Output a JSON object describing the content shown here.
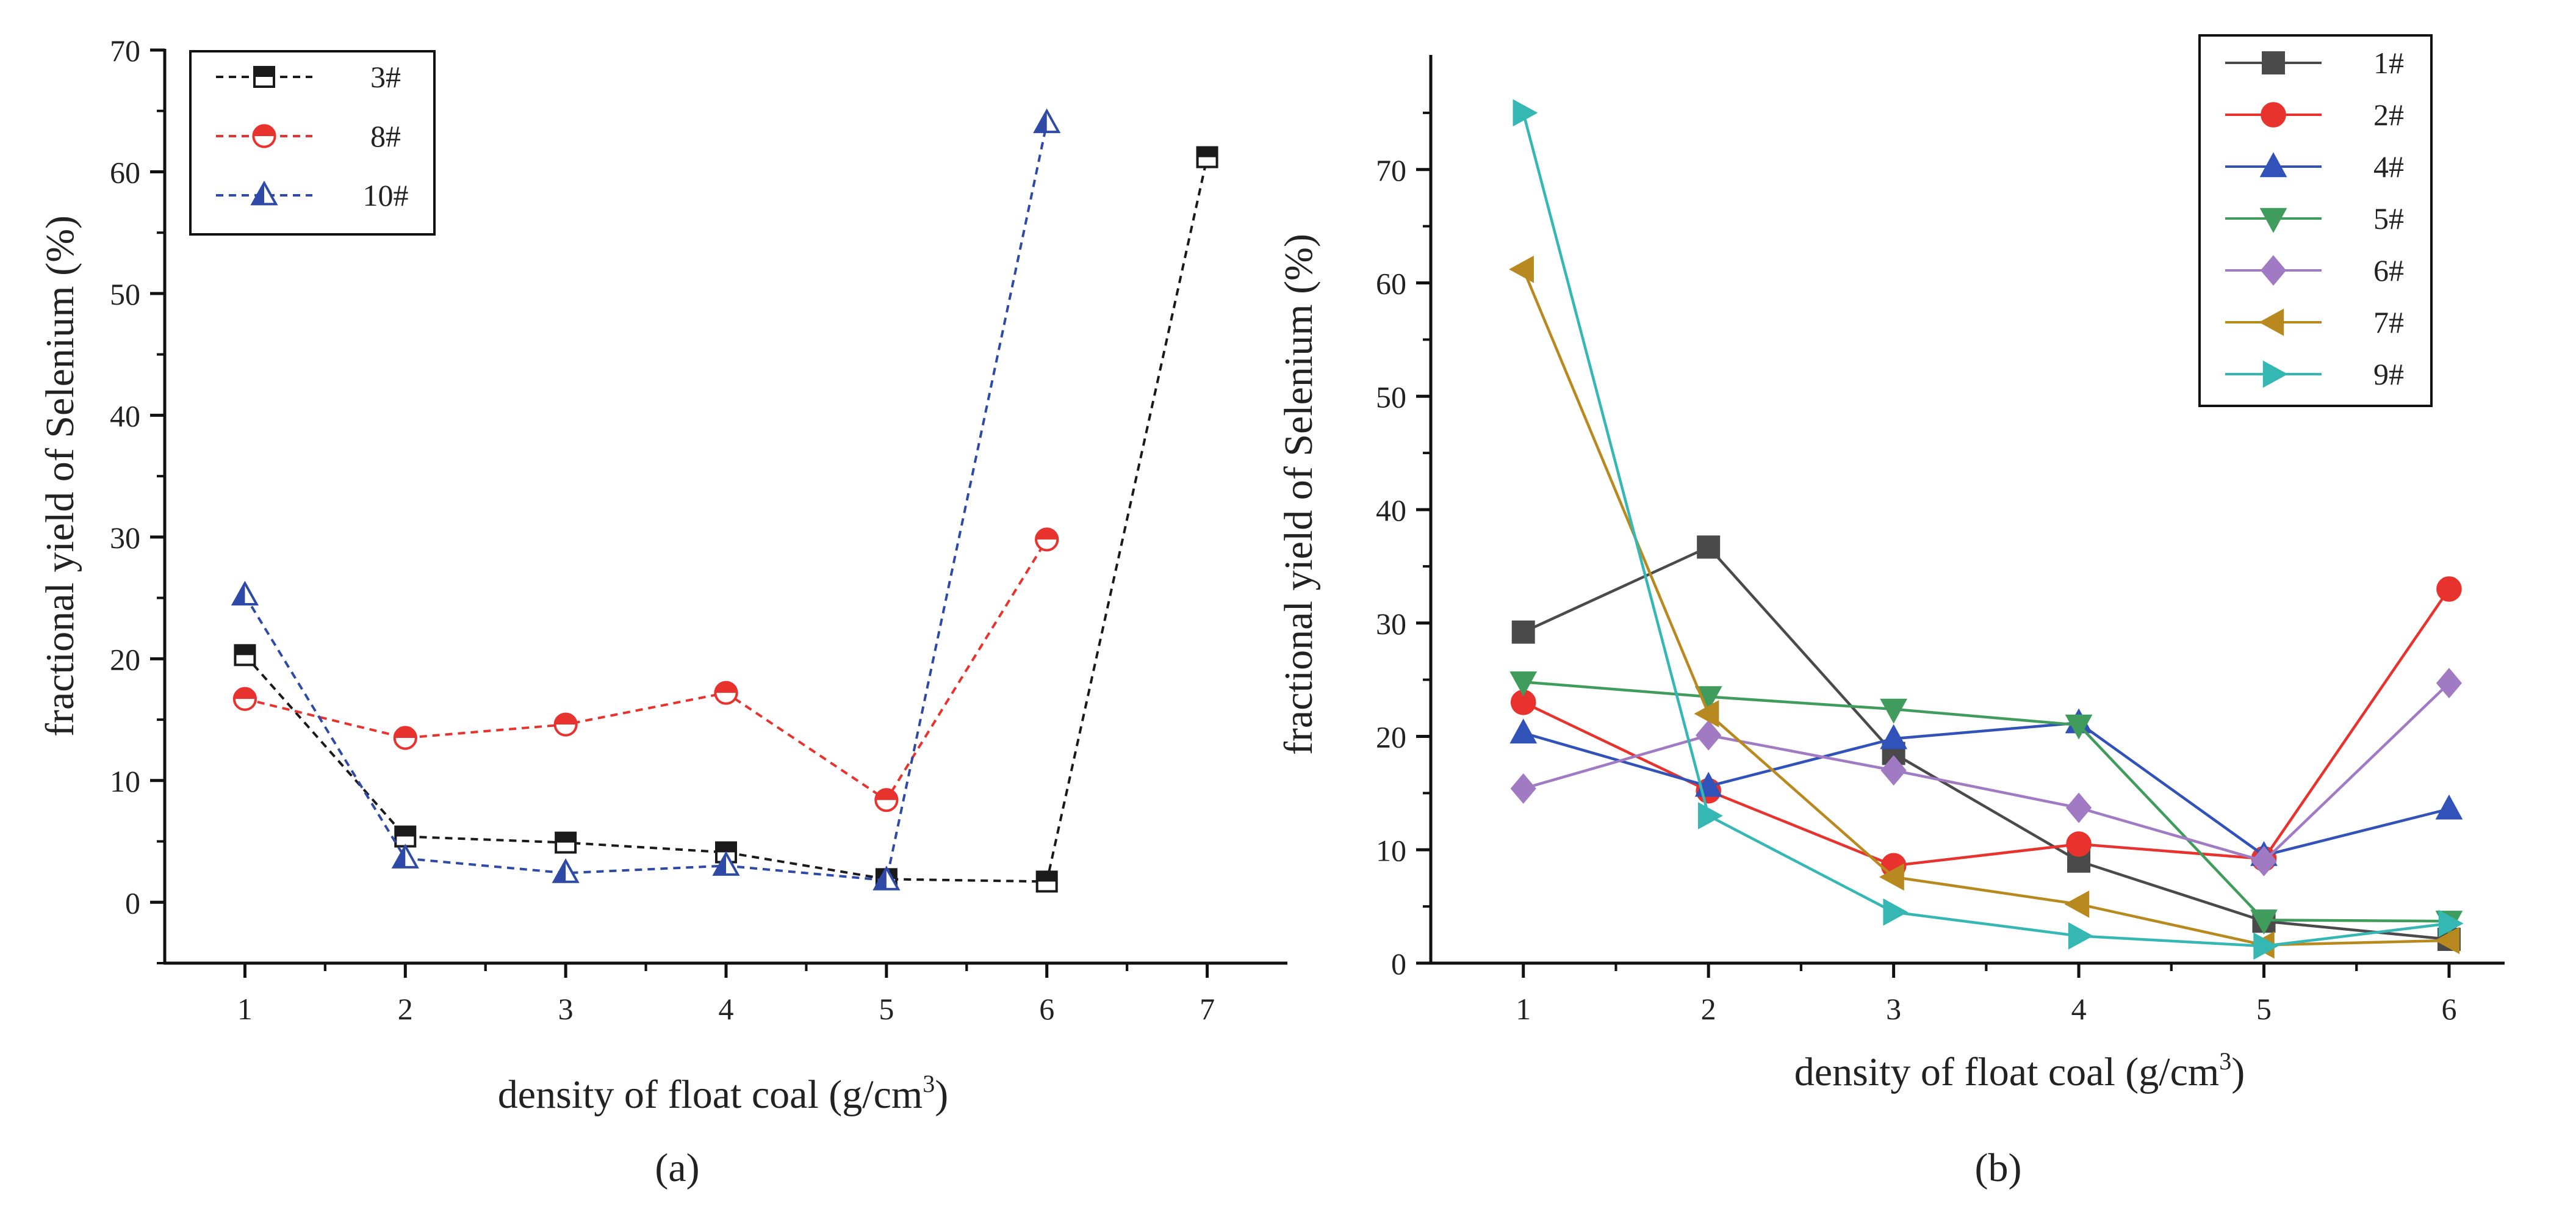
{
  "chart_data": [
    {
      "type": "line",
      "panel_label": "(a)",
      "title": "",
      "xlabel": "density of float coal (g/cm",
      "xlabel_sup": "3",
      "xlabel_end": ")",
      "ylabel": "fractional yield of Selenium (%)",
      "xlim": [
        0.5,
        7.5
      ],
      "ylim": [
        -5,
        70
      ],
      "xticks": [
        "1",
        "2",
        "3",
        "4",
        "5",
        "6",
        "7"
      ],
      "yticks": [
        "0",
        "10",
        "20",
        "30",
        "40",
        "50",
        "60",
        "70"
      ],
      "legend_position": "top-left",
      "series": [
        {
          "name": "3#",
          "color": "#1a1a1a",
          "marker": "half-square",
          "dashed": true,
          "x": [
            1,
            2,
            3,
            4,
            5,
            6,
            7
          ],
          "y": [
            20.3,
            5.4,
            4.9,
            4.1,
            1.9,
            1.7,
            61.2
          ]
        },
        {
          "name": "8#",
          "color": "#e8322d",
          "marker": "half-circle",
          "dashed": true,
          "x": [
            1,
            2,
            3,
            4,
            5,
            6
          ],
          "y": [
            16.7,
            13.5,
            14.6,
            17.2,
            8.4,
            29.8
          ]
        },
        {
          "name": "10#",
          "color": "#2f4aa6",
          "marker": "half-triangle",
          "dashed": true,
          "x": [
            1,
            2,
            3,
            4,
            5,
            6
          ],
          "y": [
            25.2,
            3.6,
            2.4,
            3.0,
            1.8,
            64.0
          ]
        }
      ]
    },
    {
      "type": "line",
      "panel_label": "(b)",
      "title": "",
      "xlabel": "density of float coal (g/cm",
      "xlabel_sup": "3",
      "xlabel_end": ")",
      "ylabel": "fractional yield of Selenium (%)",
      "xlim": [
        0.5,
        6.3
      ],
      "ylim": [
        0,
        80
      ],
      "xticks": [
        "1",
        "2",
        "3",
        "4",
        "5",
        "6"
      ],
      "yticks": [
        "0",
        "10",
        "20",
        "30",
        "40",
        "50",
        "60",
        "70"
      ],
      "legend_position": "top-right",
      "series": [
        {
          "name": "1#",
          "color": "#4a4a4a",
          "marker": "square",
          "dashed": false,
          "x": [
            1,
            2,
            3,
            4,
            5,
            6
          ],
          "y": [
            29.2,
            36.7,
            18.5,
            9.0,
            3.7,
            2.1
          ]
        },
        {
          "name": "2#",
          "color": "#e8322d",
          "marker": "circle",
          "dashed": false,
          "x": [
            1,
            2,
            3,
            4,
            5,
            6
          ],
          "y": [
            23.0,
            15.2,
            8.6,
            10.5,
            9.2,
            33.0
          ]
        },
        {
          "name": "4#",
          "color": "#3152b8",
          "marker": "triangle-up",
          "dashed": false,
          "x": [
            1,
            2,
            3,
            4,
            5,
            6
          ],
          "y": [
            20.3,
            15.6,
            19.8,
            21.2,
            9.5,
            13.6
          ]
        },
        {
          "name": "5#",
          "color": "#3f9c5c",
          "marker": "triangle-down",
          "dashed": false,
          "x": [
            1,
            2,
            3,
            4,
            5,
            6
          ],
          "y": [
            24.8,
            23.5,
            22.4,
            21.0,
            3.8,
            3.7
          ]
        },
        {
          "name": "6#",
          "color": "#a07bc4",
          "marker": "diamond",
          "dashed": false,
          "x": [
            1,
            2,
            3,
            4,
            5,
            6
          ],
          "y": [
            15.4,
            20.1,
            17.0,
            13.7,
            9.0,
            24.7
          ]
        },
        {
          "name": "7#",
          "color": "#b8891e",
          "marker": "triangle-left",
          "dashed": false,
          "x": [
            1,
            2,
            3,
            4,
            5,
            6
          ],
          "y": [
            61.2,
            22.0,
            7.6,
            5.2,
            1.6,
            2.0
          ]
        },
        {
          "name": "9#",
          "color": "#35b8b4",
          "marker": "triangle-right",
          "dashed": false,
          "x": [
            1,
            2,
            3,
            4,
            5,
            6
          ],
          "y": [
            75.0,
            13.0,
            4.5,
            2.4,
            1.5,
            3.5
          ]
        }
      ]
    }
  ]
}
